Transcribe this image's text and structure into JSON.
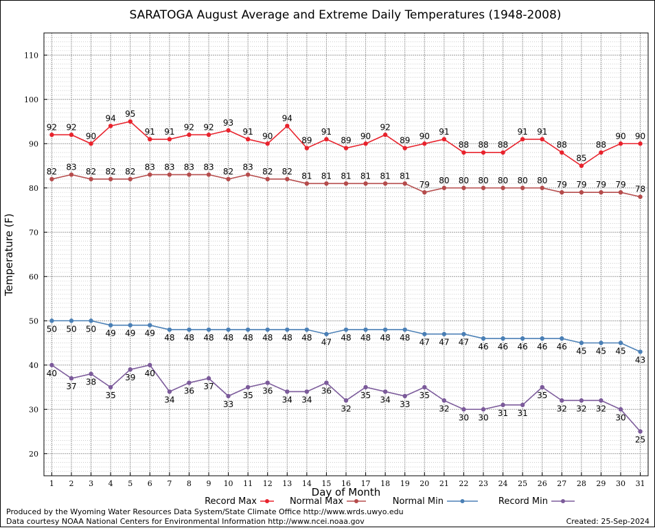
{
  "title": "SARATOGA August Average and Extreme Daily Temperatures (1948-2008)",
  "footer": {
    "line1": "Produced by the Wyoming Water Resources Data System/State Climate Office http://www.wrds.uwyo.edu",
    "line2": "Data courtesy NOAA National Centers for Environmental Information http://www.ncei.noaa.gov",
    "created": "Created:  25-Sep-2024"
  },
  "chart_data": {
    "type": "line",
    "title": "SARATOGA August Average and Extreme Daily Temperatures (1948-2008)",
    "xlabel": "Day of Month",
    "ylabel": "Temperature (F)",
    "xlim": [
      0.6,
      31.4
    ],
    "ylim": [
      15,
      115
    ],
    "yticks": [
      20,
      30,
      40,
      50,
      60,
      70,
      80,
      90,
      100,
      110
    ],
    "x": [
      1,
      2,
      3,
      4,
      5,
      6,
      7,
      8,
      9,
      10,
      11,
      12,
      13,
      14,
      15,
      16,
      17,
      18,
      19,
      20,
      21,
      22,
      23,
      24,
      25,
      26,
      27,
      28,
      29,
      30,
      31
    ],
    "grid": true,
    "legend_position": "bottom",
    "series": [
      {
        "name": "Record Max",
        "color": "#e8222c",
        "values": [
          92,
          92,
          90,
          94,
          95,
          91,
          91,
          92,
          92,
          93,
          91,
          90,
          94,
          89,
          91,
          89,
          90,
          92,
          89,
          90,
          91,
          88,
          88,
          88,
          91,
          91,
          88,
          85,
          88,
          90,
          90
        ]
      },
      {
        "name": "Normal Max",
        "color": "#b54b4b",
        "values": [
          82,
          83,
          82,
          82,
          82,
          83,
          83,
          83,
          83,
          82,
          83,
          82,
          82,
          81,
          81,
          81,
          81,
          81,
          81,
          79,
          80,
          80,
          80,
          80,
          80,
          80,
          79,
          79,
          79,
          79,
          78
        ]
      },
      {
        "name": "Normal Min",
        "color": "#4a7fb5",
        "values": [
          50,
          50,
          50,
          49,
          49,
          49,
          48,
          48,
          48,
          48,
          48,
          48,
          48,
          48,
          47,
          48,
          48,
          48,
          48,
          47,
          47,
          47,
          46,
          46,
          46,
          46,
          46,
          45,
          45,
          45,
          43
        ]
      },
      {
        "name": "Record Min",
        "color": "#7b5a9a",
        "values": [
          40,
          37,
          38,
          35,
          39,
          40,
          34,
          36,
          37,
          33,
          35,
          36,
          34,
          34,
          36,
          32,
          35,
          34,
          33,
          35,
          32,
          30,
          30,
          31,
          31,
          35,
          32,
          32,
          32,
          30,
          25
        ]
      }
    ]
  }
}
